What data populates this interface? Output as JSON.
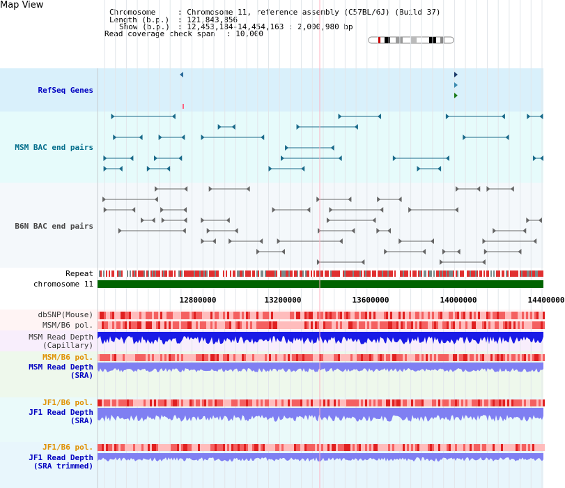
{
  "app": {
    "title": "Map View"
  },
  "header": {
    "chromosome_label": "Chromosome",
    "chromosome_value": ": Chromosome 11, reference assembly (C57BL/6J) (Build 37)",
    "length_label": "Length (b.p.)",
    "length_value": ": 121,843,856",
    "show_label": "Show (b.p.)",
    "show_value": ": 12,453,184-14,454,163 : 2,000,980 bp",
    "coverage_label": "Read coverage check span",
    "coverage_value": ": 10,000"
  },
  "tracks": {
    "refseq": "RefSeq Genes",
    "msm_bac": "MSM BAC end pairs",
    "b6n_bac": "B6N BAC end pairs",
    "repeat": "Repeat",
    "chromosome": "chromosome 11",
    "dbsnp": "dbSNP(Mouse)",
    "msm_b6_pol_1": "MSM/B6 pol.",
    "msm_depth_cap_1": "MSM Read Depth",
    "msm_depth_cap_2": "(Capillary)",
    "msm_b6_pol_2": "MSM/B6 pol.",
    "msm_depth_sra_1": "MSM Read Depth",
    "msm_depth_sra_2": "(SRA)",
    "jf1_b6_pol_1": "JF1/B6 pol.",
    "jf1_depth_sra_1": "JF1 Read Depth",
    "jf1_depth_sra_2": "(SRA)",
    "jf1_b6_pol_2": "JF1/B6 pol.",
    "jf1_depth_trim_1": "JF1 Read Depth",
    "jf1_depth_trim_2": "(SRA trimmed)"
  },
  "axis": {
    "ticks": [
      "12800000",
      "13200000",
      "13600000",
      "14000000",
      "14400000"
    ]
  },
  "colors": {
    "refseq_bg": "#d9f0fb",
    "msm_bac_bg": "#e6fbfb",
    "b6n_bac_bg": "#f4f8fb",
    "chromosome": "#006400",
    "repeat_red": "#e03030",
    "repeat_grey": "#7a8a8a",
    "snp_light": "#ffbcbc",
    "snp_dark": "#e02020",
    "depth_dark": "#1a1ae6",
    "depth_light": "#7f7ff2",
    "label_blue": "#0000c0",
    "label_orange": "#e09000",
    "label_teal": "#006c8a"
  }
}
